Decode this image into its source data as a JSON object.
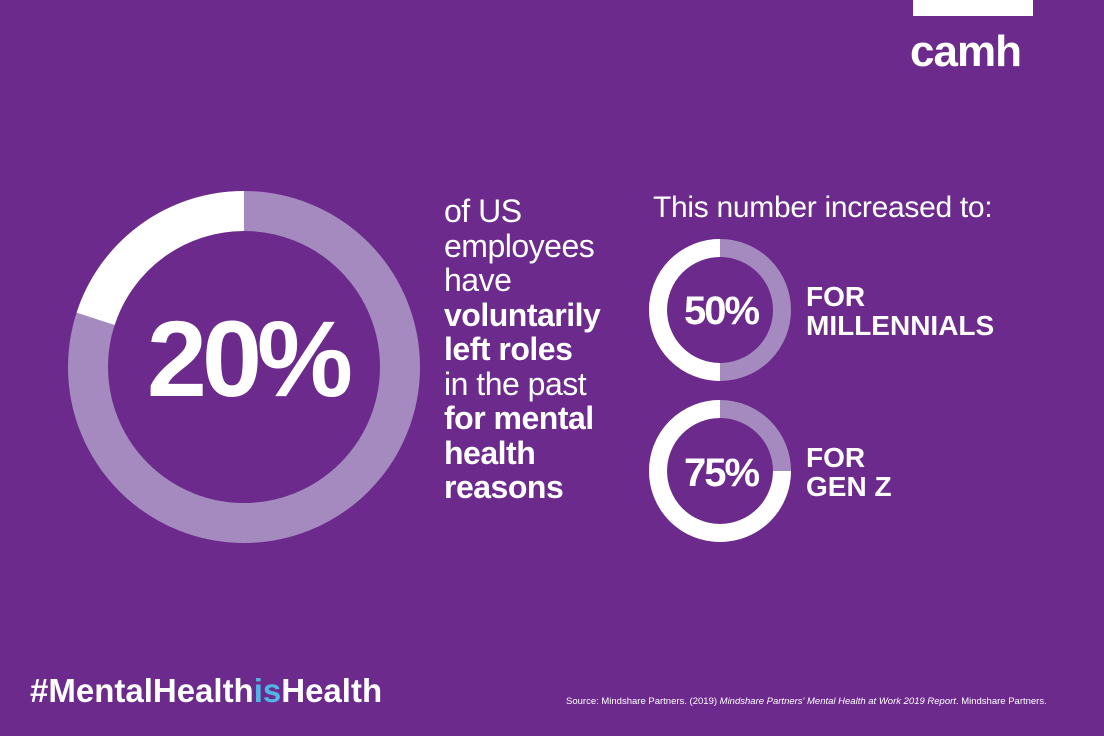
{
  "brand": {
    "logo_text": "camh",
    "logo_mark": "white-bar-logo",
    "colors": {
      "background": "#6c2a8c",
      "ring_light": "#a58abf",
      "ring_highlight": "#ffffff",
      "hashtag_accent": "#4fb6e6"
    }
  },
  "headline_stat": {
    "value_label": "20%",
    "description_lines": [
      {
        "text": "of US",
        "bold": false
      },
      {
        "text": "employees",
        "bold": false
      },
      {
        "text": "have",
        "bold": false
      },
      {
        "text": "voluntarily",
        "bold": true
      },
      {
        "text": "left roles",
        "bold": true
      },
      {
        "text": "in the past",
        "bold": false
      },
      {
        "text": "for mental",
        "bold": true
      },
      {
        "text": "health",
        "bold": true
      },
      {
        "text": "reasons",
        "bold": true
      }
    ]
  },
  "increase_text": "This number increased to:",
  "chart_data": {
    "type": "pie",
    "charts": [
      {
        "label": "20%",
        "value": 20,
        "total": 100,
        "description": "of US employees have voluntarily left roles in the past for mental health reasons"
      },
      {
        "label": "50%",
        "value": 50,
        "total": 100,
        "category_lines": [
          "FOR",
          "MILLENNIALS"
        ]
      },
      {
        "label": "75%",
        "value": 75,
        "total": 100,
        "category_lines": [
          "FOR",
          "GEN Z"
        ]
      }
    ]
  },
  "footer": {
    "hashtag_parts": [
      "#MentalHealth",
      "is",
      "Health"
    ],
    "source_prefix": "Source: Mindshare Partners. (2019) ",
    "source_title": "Mindshare Partners' Mental Health at Work 2019 Report",
    "source_suffix": ". Mindshare Partners."
  }
}
